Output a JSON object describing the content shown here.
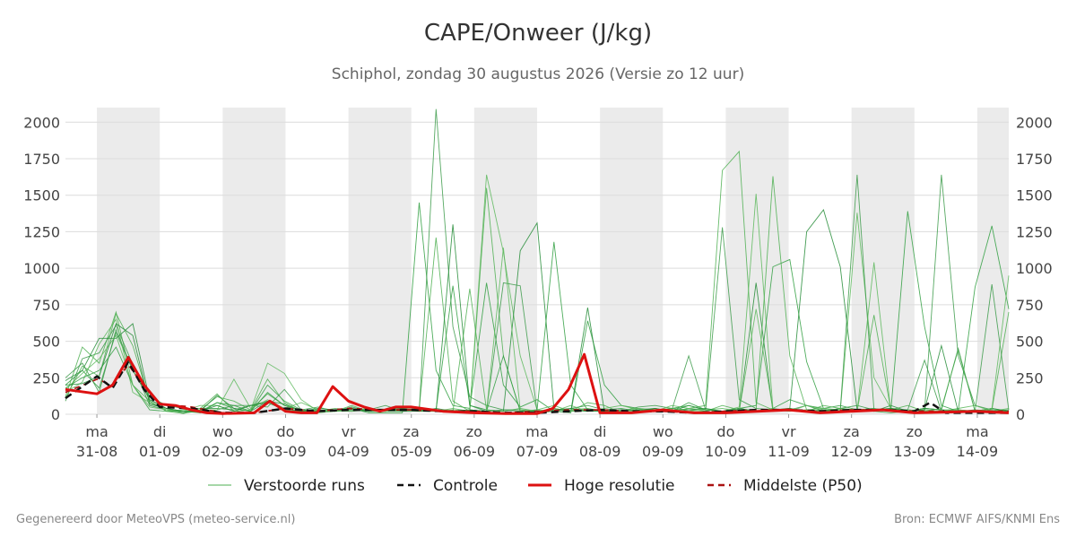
{
  "title": "CAPE/Onweer (J/kg)",
  "subtitle": "Schiphol, zondag 30 augustus 2026 (Versie zo 12 uur)",
  "footer_left": "Gegenereerd door MeteoVPS (meteo-service.nl)",
  "footer_right": "Bron: ECMWF AIFS/KNMI Ens",
  "chart_data": {
    "type": "line",
    "ylim": [
      0,
      2100
    ],
    "yticks": [
      0,
      250,
      500,
      750,
      1000,
      1250,
      1500,
      1750,
      2000
    ],
    "x_range_days": [
      "2026-08-30T12:00",
      "2026-09-14T12:00"
    ],
    "weekend_shading": true,
    "grid": "horizontal",
    "legend_position": "bottom",
    "ticks": [
      {
        "day": "ma",
        "date": "31-08"
      },
      {
        "day": "di",
        "date": "01-09"
      },
      {
        "day": "wo",
        "date": "02-09"
      },
      {
        "day": "do",
        "date": "03-09"
      },
      {
        "day": "vr",
        "date": "04-09"
      },
      {
        "day": "za",
        "date": "05-09"
      },
      {
        "day": "zo",
        "date": "06-09"
      },
      {
        "day": "ma",
        "date": "07-09"
      },
      {
        "day": "di",
        "date": "08-09"
      },
      {
        "day": "wo",
        "date": "09-09"
      },
      {
        "day": "do",
        "date": "10-09"
      },
      {
        "day": "vr",
        "date": "11-09"
      },
      {
        "day": "za",
        "date": "12-09"
      },
      {
        "day": "zo",
        "date": "13-09"
      },
      {
        "day": "ma",
        "date": "14-09"
      }
    ],
    "legend": [
      {
        "label": "Verstoorde runs",
        "color": "#4caf50",
        "style": "thin"
      },
      {
        "label": "Controle",
        "color": "#111111",
        "style": "dashed"
      },
      {
        "label": "Hoge resolutie",
        "color": "#dd1111",
        "style": "thick"
      },
      {
        "label": "Middelste (P50)",
        "color": "#aa1111",
        "style": "dashed"
      }
    ],
    "series": [
      {
        "name": "Hoge resolutie",
        "x": [
          "2026-08-30T12:00",
          "2026-08-31T00:00",
          "2026-08-31T06:00",
          "2026-08-31T12:00",
          "2026-08-31T18:00",
          "2026-09-01T00:00",
          "2026-09-01T06:00",
          "2026-09-01T12:00",
          "2026-09-01T18:00",
          "2026-09-02T00:00",
          "2026-09-02T12:00",
          "2026-09-02T18:00",
          "2026-09-03T00:00",
          "2026-09-03T06:00",
          "2026-09-03T12:00",
          "2026-09-03T18:00",
          "2026-09-04T00:00",
          "2026-09-04T06:00",
          "2026-09-04T12:00",
          "2026-09-04T18:00",
          "2026-09-05T00:00",
          "2026-09-05T12:00",
          "2026-09-06T00:00",
          "2026-09-06T12:00",
          "2026-09-07T00:00",
          "2026-09-07T06:00",
          "2026-09-07T12:00",
          "2026-09-07T18:00",
          "2026-09-08T00:00",
          "2026-09-08T12:00",
          "2026-09-09T00:00",
          "2026-09-09T12:00",
          "2026-09-10T00:00",
          "2026-09-10T12:00",
          "2026-09-11T00:00",
          "2026-09-11T12:00",
          "2026-09-12T00:00",
          "2026-09-12T12:00",
          "2026-09-13T00:00",
          "2026-09-13T12:00",
          "2026-09-14T00:00",
          "2026-09-14T12:00"
        ],
        "y": [
          170,
          140,
          200,
          390,
          200,
          70,
          60,
          30,
          10,
          5,
          10,
          90,
          20,
          10,
          10,
          190,
          90,
          50,
          20,
          50,
          50,
          20,
          10,
          5,
          5,
          40,
          170,
          410,
          10,
          10,
          30,
          10,
          10,
          20,
          30,
          10,
          20,
          30,
          10,
          15,
          20,
          10
        ]
      },
      {
        "name": "Controle",
        "x": [
          "2026-08-30T12:00",
          "2026-08-31T00:00",
          "2026-08-31T06:00",
          "2026-08-31T12:00",
          "2026-08-31T18:00",
          "2026-09-01T00:00",
          "2026-09-01T12:00",
          "2026-09-02T00:00",
          "2026-09-02T12:00",
          "2026-09-03T00:00",
          "2026-09-03T12:00",
          "2026-09-04T00:00",
          "2026-09-04T12:00",
          "2026-09-05T00:00",
          "2026-09-05T12:00",
          "2026-09-06T00:00",
          "2026-09-06T12:00",
          "2026-09-07T00:00",
          "2026-09-07T12:00",
          "2026-09-08T00:00",
          "2026-09-08T12:00",
          "2026-09-09T00:00",
          "2026-09-09T12:00",
          "2026-09-10T00:00",
          "2026-09-10T12:00",
          "2026-09-11T00:00",
          "2026-09-11T12:00",
          "2026-09-12T00:00",
          "2026-09-12T12:00",
          "2026-09-13T00:00",
          "2026-09-13T06:00",
          "2026-09-13T12:00",
          "2026-09-14T00:00",
          "2026-09-14T12:00"
        ],
        "y": [
          110,
          260,
          180,
          360,
          170,
          50,
          40,
          10,
          10,
          40,
          20,
          30,
          30,
          30,
          20,
          20,
          10,
          10,
          20,
          30,
          20,
          20,
          10,
          20,
          30,
          30,
          20,
          30,
          30,
          20,
          80,
          10,
          10,
          10
        ]
      },
      {
        "name": "Middelste (P50)",
        "x": [
          "2026-08-30T12:00",
          "2026-08-31T00:00",
          "2026-08-31T06:00",
          "2026-08-31T12:00",
          "2026-08-31T18:00",
          "2026-09-01T00:00",
          "2026-09-01T12:00",
          "2026-09-02T00:00",
          "2026-09-02T12:00",
          "2026-09-03T00:00",
          "2026-09-03T12:00",
          "2026-09-04T00:00",
          "2026-09-04T12:00",
          "2026-09-05T00:00",
          "2026-09-05T12:00",
          "2026-09-06T00:00",
          "2026-09-06T12:00",
          "2026-09-07T00:00",
          "2026-09-07T12:00",
          "2026-09-08T00:00",
          "2026-09-08T12:00",
          "2026-09-09T00:00",
          "2026-09-09T12:00",
          "2026-09-10T00:00",
          "2026-09-10T12:00",
          "2026-09-11T00:00",
          "2026-09-11T12:00",
          "2026-09-12T00:00",
          "2026-09-12T12:00",
          "2026-09-13T00:00",
          "2026-09-13T12:00",
          "2026-09-14T00:00",
          "2026-09-14T12:00"
        ],
        "y": [
          150,
          240,
          200,
          340,
          190,
          70,
          50,
          10,
          10,
          40,
          20,
          40,
          30,
          30,
          20,
          20,
          10,
          20,
          30,
          30,
          20,
          20,
          10,
          20,
          30,
          30,
          20,
          30,
          30,
          20,
          20,
          20,
          20
        ]
      }
    ],
    "perturbed_runs": [
      [
        200,
        300,
        180,
        560,
        300,
        100,
        40,
        10,
        20,
        80,
        40,
        20,
        200,
        90,
        30,
        20,
        20,
        40,
        10,
        10,
        10,
        1450,
        300,
        60,
        40,
        900,
        200,
        50,
        100,
        20,
        10,
        640,
        200,
        60,
        40,
        30,
        20,
        80,
        30,
        20,
        40,
        20,
        40,
        100,
        60,
        40,
        60,
        30,
        20,
        10,
        20,
        40,
        30,
        20,
        20,
        10,
        20
      ],
      [
        120,
        460,
        350,
        700,
        200,
        90,
        20,
        5,
        30,
        120,
        90,
        30,
        140,
        60,
        20,
        10,
        20,
        30,
        20,
        30,
        20,
        40,
        1210,
        90,
        20,
        1550,
        400,
        20,
        30,
        60,
        20,
        80,
        60,
        10,
        20,
        30,
        20,
        40,
        60,
        1670,
        1800,
        80,
        30,
        40,
        20,
        60,
        40,
        30,
        20,
        30,
        20,
        40,
        30,
        30,
        20,
        40,
        20
      ],
      [
        90,
        380,
        420,
        610,
        340,
        60,
        30,
        10,
        40,
        40,
        30,
        60,
        90,
        40,
        20,
        30,
        20,
        50,
        20,
        20,
        20,
        20,
        2090,
        600,
        120,
        60,
        30,
        30,
        10,
        20,
        40,
        60,
        30,
        20,
        50,
        60,
        40,
        30,
        20,
        1280,
        100,
        40,
        30,
        30,
        60,
        20,
        40,
        60,
        30,
        40,
        30,
        20,
        1640,
        400,
        60,
        30,
        20
      ],
      [
        150,
        220,
        480,
        650,
        150,
        80,
        30,
        20,
        60,
        60,
        20,
        30,
        350,
        280,
        100,
        20,
        40,
        30,
        40,
        20,
        40,
        30,
        20,
        30,
        20,
        1640,
        1110,
        400,
        30,
        20,
        60,
        20,
        40,
        60,
        30,
        20,
        60,
        40,
        30,
        20,
        50,
        1510,
        40,
        20,
        60,
        30,
        20,
        1380,
        250,
        40,
        20,
        30,
        20,
        40,
        60,
        20,
        40
      ],
      [
        230,
        300,
        520,
        520,
        620,
        100,
        40,
        20,
        20,
        130,
        40,
        20,
        90,
        70,
        20,
        20,
        30,
        30,
        20,
        20,
        30,
        40,
        20,
        1300,
        60,
        30,
        20,
        1120,
        1310,
        40,
        20,
        730,
        20,
        20,
        30,
        40,
        20,
        60,
        30,
        20,
        20,
        900,
        20,
        40,
        1250,
        1400,
        1010,
        30,
        20,
        60,
        20,
        40,
        30,
        450,
        20,
        40,
        20
      ],
      [
        180,
        250,
        300,
        460,
        200,
        30,
        20,
        20,
        10,
        80,
        60,
        20,
        150,
        60,
        30,
        50,
        20,
        40,
        20,
        30,
        20,
        40,
        30,
        880,
        60,
        20,
        400,
        20,
        30,
        1180,
        200,
        30,
        20,
        20,
        30,
        20,
        40,
        60,
        30,
        20,
        40,
        60,
        1010,
        1060,
        360,
        40,
        20,
        30,
        40,
        20,
        1390,
        600,
        60,
        20,
        870,
        1290,
        720
      ],
      [
        110,
        330,
        260,
        690,
        470,
        90,
        20,
        30,
        40,
        140,
        20,
        30,
        240,
        80,
        20,
        30,
        20,
        60,
        20,
        20,
        30,
        20,
        20,
        20,
        860,
        30,
        20,
        40,
        20,
        20,
        30,
        40,
        20,
        30,
        20,
        30,
        40,
        30,
        20,
        60,
        30,
        20,
        1630,
        400,
        30,
        20,
        40,
        20,
        680,
        30,
        60,
        20,
        40,
        440,
        20,
        30,
        700
      ],
      [
        250,
        350,
        150,
        580,
        300,
        120,
        60,
        40,
        10,
        30,
        60,
        60,
        50,
        170,
        30,
        20,
        30,
        20,
        30,
        60,
        20,
        30,
        20,
        20,
        30,
        20,
        900,
        880,
        20,
        30,
        20,
        20,
        30,
        40,
        20,
        30,
        30,
        400,
        30,
        20,
        40,
        20,
        30,
        20,
        30,
        20,
        30,
        1640,
        30,
        20,
        30,
        370,
        20,
        30,
        20,
        890,
        30
      ],
      [
        170,
        280,
        380,
        540,
        200,
        50,
        30,
        20,
        30,
        30,
        240,
        40,
        100,
        40,
        80,
        30,
        20,
        20,
        40,
        20,
        40,
        20,
        20,
        40,
        20,
        20,
        1140,
        30,
        20,
        40,
        20,
        30,
        20,
        20,
        40,
        20,
        30,
        20,
        30,
        40,
        20,
        720,
        30,
        20,
        30,
        40,
        30,
        20,
        1040,
        20,
        30,
        20,
        20,
        30,
        20,
        40,
        950
      ],
      [
        200,
        210,
        260,
        620,
        540,
        70,
        40,
        20,
        20,
        60,
        20,
        60,
        80,
        30,
        20,
        40,
        30,
        40,
        20,
        30,
        40,
        20,
        40,
        20,
        30,
        20,
        30,
        20,
        20,
        30,
        40,
        20,
        20,
        30,
        20,
        40,
        20,
        30,
        40,
        20,
        30,
        20,
        30,
        40,
        20,
        30,
        20,
        20,
        30,
        40,
        20,
        30,
        470,
        20,
        30,
        20,
        30
      ]
    ]
  }
}
